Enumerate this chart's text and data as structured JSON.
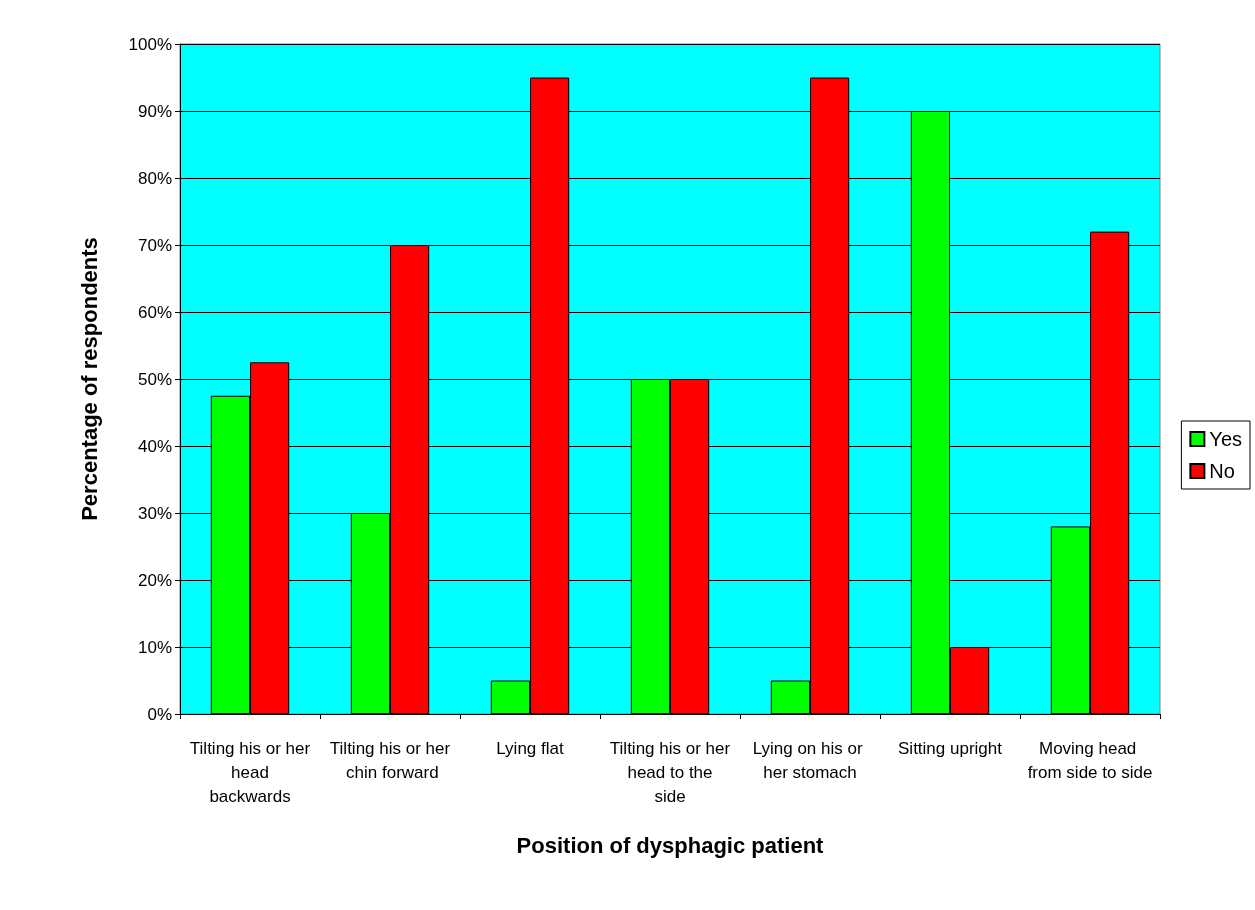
{
  "chart_data": {
    "type": "bar",
    "xlabel": "Position of dysphagic patient",
    "ylabel": "Percentage of respondents",
    "categories": [
      "Tilting his or her head backwards",
      "Tilting his or her chin forward",
      "Lying flat",
      "Tilting his or her head to the side",
      "Lying on his or her stomach",
      "Sitting upright",
      "Moving head from side to side"
    ],
    "series": [
      {
        "name": "Yes",
        "color": "#00ff00",
        "values": [
          47.5,
          30,
          5,
          50,
          5,
          90,
          28
        ]
      },
      {
        "name": "No",
        "color": "#ff0000",
        "values": [
          52.5,
          70,
          95,
          50,
          95,
          10,
          72
        ]
      }
    ],
    "ylim": [
      0,
      100
    ],
    "yticks": [
      {
        "value": 0,
        "label": "0%"
      },
      {
        "value": 10,
        "label": "10%"
      },
      {
        "value": 20,
        "label": "20%"
      },
      {
        "value": 30,
        "label": "30%"
      },
      {
        "value": 40,
        "label": "40%"
      },
      {
        "value": 50,
        "label": "50%"
      },
      {
        "value": 60,
        "label": "60%"
      },
      {
        "value": 70,
        "label": "70%"
      },
      {
        "value": 80,
        "label": "80%"
      },
      {
        "value": 90,
        "label": "90%"
      },
      {
        "value": 100,
        "label": "100%"
      }
    ],
    "grid": "y",
    "legend": "right"
  }
}
